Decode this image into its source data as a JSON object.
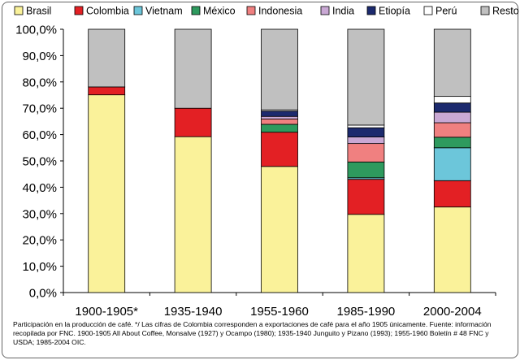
{
  "chart_data": {
    "type": "bar",
    "stacked": true,
    "categories": [
      "1900-1905*",
      "1935-1940",
      "1955-1960",
      "1985-1990",
      "2000-2004"
    ],
    "ylim": [
      0,
      100
    ],
    "ytick_step": 10,
    "legend_position": "top",
    "series": [
      {
        "name": "Brasil",
        "color": "#faf29a",
        "values": [
          75.1,
          59.2,
          47.9,
          29.7,
          32.5
        ]
      },
      {
        "name": "Colombia",
        "color": "#e32024",
        "values": [
          3.0,
          10.8,
          13.0,
          13.3,
          10.0
        ]
      },
      {
        "name": "Vietnam",
        "color": "#6cc6da",
        "values": [
          0,
          0,
          0,
          0.6,
          12.5
        ]
      },
      {
        "name": "México",
        "color": "#2e9a5e",
        "values": [
          0,
          0,
          3.0,
          6.0,
          4.0
        ]
      },
      {
        "name": "Indonesia",
        "color": "#f08080",
        "values": [
          0,
          0,
          2.0,
          7.0,
          5.5
        ]
      },
      {
        "name": "India",
        "color": "#c9a8d4",
        "values": [
          0,
          0,
          1.0,
          2.5,
          4.0
        ]
      },
      {
        "name": "Etiopía",
        "color": "#1c2a6e",
        "values": [
          0,
          0,
          2.0,
          3.5,
          3.5
        ]
      },
      {
        "name": "Perú",
        "color": "#ffffff",
        "values": [
          0,
          0,
          0.5,
          1.0,
          2.5
        ]
      },
      {
        "name": "Resto de países",
        "color": "#c0c0c0",
        "values": [
          21.9,
          30.0,
          30.6,
          36.4,
          25.5
        ]
      }
    ],
    "y_tick_labels": [
      "0,0%",
      "10,0%",
      "20,0%",
      "30,0%",
      "40,0%",
      "50,0%",
      "60,0%",
      "70,0%",
      "80,0%",
      "90,0%",
      "100,0%"
    ]
  },
  "footnote": "Participación en la producción de café. */ Las cifras de Colombia  corresponden a exportaciones de café para el año 1905 únicamente. Fuente: información recopilada por FNC.  1900-1905 All About Coffee,  Monsalve (1927) y Ocampo (1980); 1935-1940 Junguito y Pizano (1993); 1955-1960 Boletín # 48 FNC y USDA; 1985-2004 OIC."
}
